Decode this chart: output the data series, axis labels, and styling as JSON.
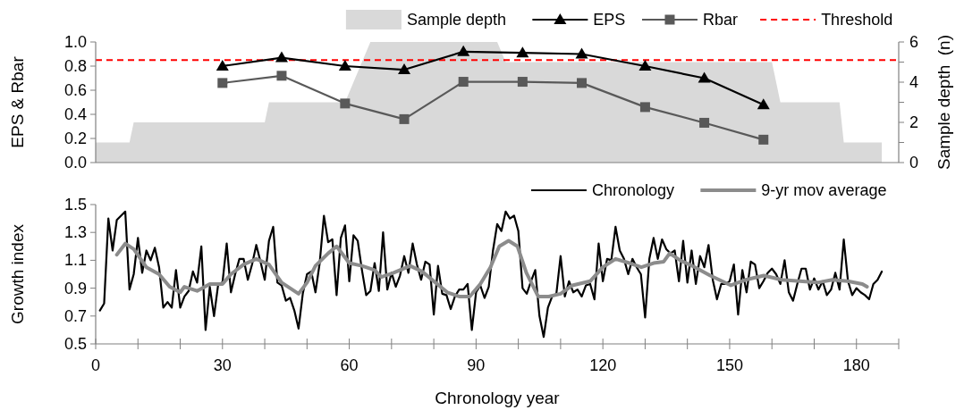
{
  "chart_data": [
    {
      "type": "line",
      "ylabel": "EPS & Rbar",
      "y2label": "Sample depth  (n)",
      "xlim": [
        0,
        190
      ],
      "ylim": [
        0,
        1
      ],
      "yticks": [
        {
          "value": 0,
          "label": "0.0"
        },
        0.2,
        0.4,
        0.6,
        0.8,
        {
          "value": 1,
          "label": "1.0"
        }
      ],
      "y2lim": [
        0,
        6
      ],
      "y2ticks": [
        0,
        {
          "value": 1,
          "label": null
        },
        2,
        {
          "value": 3,
          "label": null
        },
        4,
        {
          "value": 5,
          "label": null
        },
        6
      ],
      "tick_labels": "y",
      "legend": "top right",
      "series": [
        {
          "name": "Sample depth",
          "type": "area",
          "axis": "y2",
          "color": "#d9d9d9",
          "marker": "none",
          "x": [
            0,
            8,
            9,
            40,
            41,
            59,
            65,
            95,
            97,
            160,
            162,
            176,
            177,
            186
          ],
          "values": [
            1,
            1,
            2,
            2,
            3,
            3,
            6,
            6,
            5,
            5,
            3,
            3,
            1,
            1
          ]
        },
        {
          "name": "EPS",
          "color": "#000000",
          "marker": "triangle",
          "x": [
            30,
            44,
            59,
            73,
            87,
            101,
            115,
            130,
            144,
            158
          ],
          "values": [
            0.8,
            0.87,
            0.8,
            0.77,
            0.92,
            0.91,
            0.9,
            0.8,
            0.7,
            0.48
          ]
        },
        {
          "name": "Rbar",
          "color": "#595959",
          "marker": "square",
          "x": [
            30,
            44,
            59,
            73,
            87,
            101,
            115,
            130,
            144,
            158
          ],
          "values": [
            0.66,
            0.72,
            0.49,
            0.36,
            0.67,
            0.67,
            0.66,
            0.46,
            0.33,
            0.19
          ]
        }
      ],
      "ref_lines": [
        {
          "axis": "y",
          "value": 0.85,
          "label": "Threshold",
          "color": "#ff0000",
          "line_style": "dashed"
        }
      ]
    },
    {
      "type": "line",
      "xlabel": "Chronology year",
      "ylabel": "Growth index",
      "xlim": [
        0,
        190
      ],
      "xticks": [
        0,
        {
          "value": 10,
          "label": null
        },
        {
          "value": 20,
          "label": null
        },
        30,
        {
          "value": 40,
          "label": null
        },
        {
          "value": 50,
          "label": null
        },
        60,
        {
          "value": 70,
          "label": null
        },
        {
          "value": 80,
          "label": null
        },
        90,
        {
          "value": 100,
          "label": null
        },
        {
          "value": 110,
          "label": null
        },
        120,
        {
          "value": 130,
          "label": null
        },
        {
          "value": 140,
          "label": null
        },
        150,
        {
          "value": 160,
          "label": null
        },
        {
          "value": 170,
          "label": null
        },
        180,
        {
          "value": 190,
          "label": null
        }
      ],
      "ylim": [
        0.5,
        1.5
      ],
      "yticks": [
        0.5,
        0.7,
        0.9,
        1.1,
        1.3,
        1.5
      ],
      "legend": "top right",
      "marker": "none",
      "series": [
        {
          "name": "Chronology",
          "color": "#000000",
          "x": [
            1,
            2,
            3,
            4,
            5,
            6,
            7,
            8,
            9,
            10,
            11,
            12,
            13,
            14,
            15,
            16,
            17,
            18,
            19,
            20,
            21,
            22,
            23,
            24,
            25,
            26,
            27,
            28,
            29,
            30,
            31,
            32,
            33,
            34,
            35,
            36,
            37,
            38,
            39,
            40,
            41,
            42,
            43,
            44,
            45,
            46,
            47,
            48,
            49,
            50,
            51,
            52,
            53,
            54,
            55,
            56,
            57,
            58,
            59,
            60,
            61,
            62,
            63,
            64,
            65,
            66,
            67,
            68,
            69,
            70,
            71,
            72,
            73,
            74,
            75,
            76,
            77,
            78,
            79,
            80,
            81,
            82,
            83,
            84,
            85,
            86,
            87,
            88,
            89,
            90,
            91,
            92,
            93,
            94,
            95,
            96,
            97,
            98,
            99,
            100,
            101,
            102,
            103,
            104,
            105,
            106,
            107,
            108,
            109,
            110,
            111,
            112,
            113,
            114,
            115,
            116,
            117,
            118,
            119,
            120,
            121,
            122,
            123,
            124,
            125,
            126,
            127,
            128,
            129,
            130,
            131,
            132,
            133,
            134,
            135,
            136,
            137,
            138,
            139,
            140,
            141,
            142,
            143,
            144,
            145,
            146,
            147,
            148,
            149,
            150,
            151,
            152,
            153,
            154,
            155,
            156,
            157,
            158,
            159,
            160,
            161,
            162,
            163,
            164,
            165,
            166,
            167,
            168,
            169,
            170,
            171,
            172,
            173,
            174,
            175,
            176,
            177,
            178,
            179,
            180,
            181,
            182,
            183,
            184,
            185,
            186
          ],
          "values": [
            0.74,
            0.79,
            1.4,
            1.17,
            1.39,
            1.42,
            1.45,
            0.89,
            1.0,
            1.26,
            1.01,
            1.17,
            1.1,
            1.19,
            1.05,
            0.76,
            0.8,
            0.76,
            1.03,
            0.76,
            0.84,
            0.88,
            1.02,
            0.94,
            1.2,
            0.6,
            0.91,
            0.7,
            0.93,
            0.94,
            1.22,
            0.87,
            1.0,
            1.11,
            1.11,
            0.96,
            1.07,
            1.21,
            1.09,
            0.96,
            1.24,
            1.34,
            0.94,
            0.92,
            0.81,
            0.83,
            0.74,
            0.61,
            0.86,
            1.0,
            1.02,
            0.87,
            1.08,
            1.42,
            1.23,
            1.25,
            0.85,
            1.26,
            1.35,
            0.95,
            1.28,
            1.24,
            1.03,
            0.85,
            0.88,
            1.08,
            0.88,
            1.3,
            0.89,
            1.01,
            0.91,
            0.99,
            1.13,
            1.01,
            1.22,
            1.07,
            0.96,
            1.09,
            1.07,
            0.71,
            1.06,
            0.86,
            0.85,
            0.75,
            0.84,
            0.89,
            0.89,
            0.93,
            0.6,
            0.87,
            0.92,
            0.83,
            0.91,
            1.17,
            1.36,
            1.31,
            1.45,
            1.4,
            1.42,
            1.31,
            0.9,
            0.86,
            0.95,
            1.03,
            0.7,
            0.55,
            0.76,
            0.84,
            0.86,
            1.13,
            0.84,
            0.95,
            0.87,
            0.89,
            0.84,
            0.92,
            0.93,
            0.82,
            1.22,
            0.95,
            1.11,
            1.1,
            1.34,
            1.17,
            1.11,
            1.0,
            1.11,
            1.05,
            1.0,
            0.69,
            1.11,
            1.26,
            1.11,
            1.25,
            1.18,
            1.15,
            1.17,
            0.95,
            1.24,
            0.94,
            1.17,
            0.93,
            1.13,
            1.05,
            1.21,
            0.96,
            0.82,
            0.93,
            0.93,
            0.95,
            1.07,
            0.71,
            1.03,
            0.87,
            1.09,
            1.07,
            0.9,
            0.95,
            1.01,
            1.04,
            1.0,
            0.93,
            1.1,
            0.87,
            0.81,
            0.93,
            1.04,
            1.04,
            0.89,
            0.97,
            0.89,
            0.95,
            0.85,
            0.89,
            1.01,
            0.89,
            1.25,
            0.95,
            0.85,
            0.9,
            0.87,
            0.85,
            0.82,
            0.93,
            0.96,
            1.02
          ]
        },
        {
          "name": "9-yr mov average",
          "color": "#8c8c8c",
          "x": [
            5,
            7,
            9,
            12,
            15,
            17.5,
            20,
            21,
            24,
            27,
            30,
            32,
            35,
            38,
            41,
            44,
            46,
            48,
            50,
            52,
            55,
            57,
            60,
            63,
            66,
            67.6,
            70.5,
            74.4,
            77.2,
            80.4,
            83.2,
            86,
            88.5,
            91,
            93.4,
            95.5,
            97.7,
            99.8,
            101.9,
            104.7,
            107.2,
            110,
            112.8,
            117,
            120,
            123,
            126.3,
            129.1,
            132,
            134.4,
            135.8,
            138.3,
            141.8,
            145.4,
            148.2,
            150.3,
            153.8,
            158.1,
            162.3,
            166.6,
            170.8,
            174.3,
            177.9,
            181.4,
            182.5
          ],
          "values": [
            1.14,
            1.22,
            1.18,
            1.05,
            1.0,
            0.91,
            0.87,
            0.91,
            0.88,
            0.93,
            0.93,
            1.0,
            1.07,
            1.11,
            1.07,
            0.94,
            0.9,
            0.86,
            0.94,
            1.06,
            1.15,
            1.2,
            1.08,
            1.06,
            1.03,
            0.98,
            1.01,
            1.06,
            1.02,
            0.94,
            0.87,
            0.84,
            0.84,
            0.93,
            1.05,
            1.2,
            1.24,
            1.2,
            1.01,
            0.84,
            0.84,
            0.86,
            0.92,
            0.95,
            1.05,
            1.11,
            1.08,
            1.05,
            1.08,
            1.09,
            1.15,
            1.1,
            1.05,
            0.99,
            0.95,
            0.92,
            0.96,
            0.99,
            0.96,
            0.95,
            0.94,
            0.96,
            0.95,
            0.93,
            0.91
          ]
        }
      ]
    }
  ]
}
